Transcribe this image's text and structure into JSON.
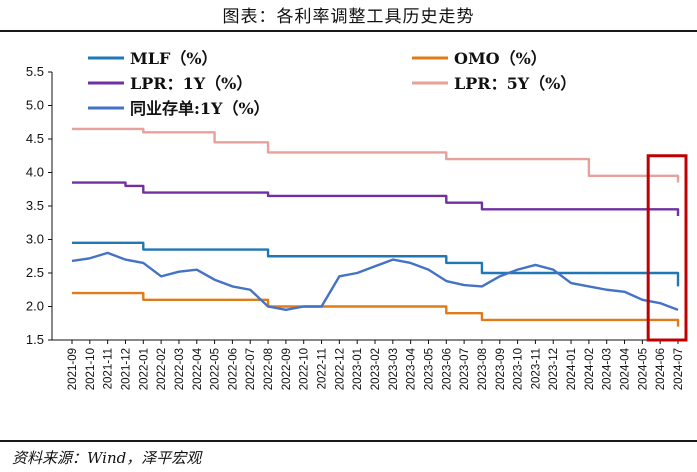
{
  "header": {
    "title": "图表：各利率调整工具历史走势"
  },
  "footer": {
    "source": "资料来源：Wind，泽平宏观"
  },
  "chart_data": {
    "type": "line",
    "ylim": [
      1.5,
      5.5
    ],
    "yticks": [
      "1.5",
      "2.0",
      "2.5",
      "3.0",
      "3.5",
      "4.0",
      "4.5",
      "5.0",
      "5.5"
    ],
    "x": [
      "2021-09",
      "2021-10",
      "2021-11",
      "2021-12",
      "2022-01",
      "2022-02",
      "2022-03",
      "2022-04",
      "2022-05",
      "2022-06",
      "2022-07",
      "2022-08",
      "2022-09",
      "2022-10",
      "2022-11",
      "2022-12",
      "2023-01",
      "2023-02",
      "2023-03",
      "2023-04",
      "2023-05",
      "2023-06",
      "2023-07",
      "2023-08",
      "2023-09",
      "2023-10",
      "2023-11",
      "2023-12",
      "2024-01",
      "2024-02",
      "2024-03",
      "2024-04",
      "2024-05",
      "2024-06",
      "2024-07"
    ],
    "grid": false,
    "legend_position": "top",
    "highlight": {
      "x_from": "2024-06",
      "x_to": "2024-07",
      "color": "#c00000"
    },
    "series": [
      {
        "name": "MLF（%）",
        "color": "#1f77b4",
        "step": true,
        "points": [
          [
            "2021-09",
            2.95
          ],
          [
            "2021-12",
            2.95
          ],
          [
            "2022-01",
            2.85
          ],
          [
            "2022-08",
            2.75
          ],
          [
            "2023-06",
            2.65
          ],
          [
            "2023-08",
            2.5
          ],
          [
            "2024-07",
            2.5
          ],
          [
            "2024-07",
            2.3
          ]
        ]
      },
      {
        "name": "OMO（%）",
        "color": "#e07b19",
        "step": true,
        "points": [
          [
            "2021-09",
            2.2
          ],
          [
            "2022-01",
            2.1
          ],
          [
            "2022-08",
            2.0
          ],
          [
            "2023-06",
            1.9
          ],
          [
            "2023-08",
            1.8
          ],
          [
            "2024-07",
            1.8
          ],
          [
            "2024-07",
            1.7
          ]
        ]
      },
      {
        "name": "LPR：1Y（%）",
        "color": "#7030a0",
        "step": true,
        "points": [
          [
            "2021-09",
            3.85
          ],
          [
            "2021-12",
            3.8
          ],
          [
            "2022-01",
            3.7
          ],
          [
            "2022-08",
            3.65
          ],
          [
            "2023-06",
            3.55
          ],
          [
            "2023-08",
            3.45
          ],
          [
            "2024-07",
            3.45
          ],
          [
            "2024-07",
            3.35
          ]
        ]
      },
      {
        "name": "LPR：5Y（%）",
        "color": "#e8a09a",
        "step": true,
        "points": [
          [
            "2021-09",
            4.65
          ],
          [
            "2022-01",
            4.6
          ],
          [
            "2022-05",
            4.45
          ],
          [
            "2022-08",
            4.3
          ],
          [
            "2023-06",
            4.2
          ],
          [
            "2024-02",
            3.95
          ],
          [
            "2024-07",
            3.95
          ],
          [
            "2024-07",
            3.85
          ]
        ]
      },
      {
        "name": "同业存单:1Y（%）",
        "color": "#4472c4",
        "step": false,
        "points": [
          [
            "2021-09",
            2.68
          ],
          [
            "2021-10",
            2.72
          ],
          [
            "2021-11",
            2.8
          ],
          [
            "2021-12",
            2.7
          ],
          [
            "2022-01",
            2.65
          ],
          [
            "2022-02",
            2.45
          ],
          [
            "2022-03",
            2.52
          ],
          [
            "2022-04",
            2.55
          ],
          [
            "2022-05",
            2.4
          ],
          [
            "2022-06",
            2.3
          ],
          [
            "2022-07",
            2.25
          ],
          [
            "2022-08",
            2.0
          ],
          [
            "2022-09",
            1.95
          ],
          [
            "2022-10",
            2.0
          ],
          [
            "2022-11",
            2.0
          ],
          [
            "2022-12",
            2.45
          ],
          [
            "2023-01",
            2.5
          ],
          [
            "2023-02",
            2.6
          ],
          [
            "2023-03",
            2.7
          ],
          [
            "2023-04",
            2.65
          ],
          [
            "2023-05",
            2.55
          ],
          [
            "2023-06",
            2.38
          ],
          [
            "2023-07",
            2.32
          ],
          [
            "2023-08",
            2.3
          ],
          [
            "2023-09",
            2.45
          ],
          [
            "2023-10",
            2.55
          ],
          [
            "2023-11",
            2.62
          ],
          [
            "2023-12",
            2.55
          ],
          [
            "2024-01",
            2.35
          ],
          [
            "2024-02",
            2.3
          ],
          [
            "2024-03",
            2.25
          ],
          [
            "2024-04",
            2.22
          ],
          [
            "2024-05",
            2.1
          ],
          [
            "2024-06",
            2.05
          ],
          [
            "2024-07",
            1.95
          ]
        ]
      }
    ]
  }
}
